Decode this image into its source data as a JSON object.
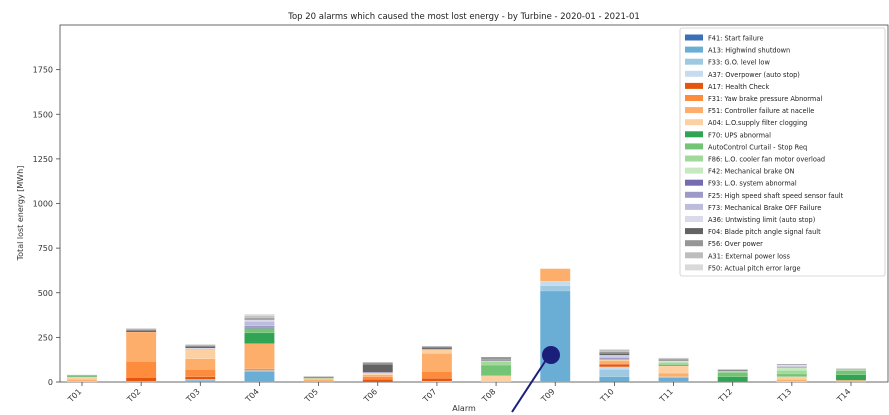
{
  "chart_data": {
    "type": "bar",
    "stacked": true,
    "title": "Top 20 alarms which caused the most lost energy - by Turbine - 2020-01 - 2021-01",
    "xlabel": "Alarm",
    "ylabel": "Total lost energy [MWh]",
    "ylim": [
      0,
      2000
    ],
    "yticks": [
      0,
      250,
      500,
      750,
      1000,
      1250,
      1500,
      1750
    ],
    "grid": false,
    "legend_position": "top-right",
    "categories": [
      "T01",
      "T02",
      "T03",
      "T04",
      "T05",
      "T06",
      "T07",
      "T08",
      "T09",
      "T10",
      "T11",
      "T12",
      "T13",
      "T14"
    ],
    "series": [
      {
        "name": "F41: Start failure",
        "color": "#3b6fb6",
        "values": [
          0,
          0,
          0,
          0,
          0,
          0,
          0,
          0,
          0,
          5,
          0,
          0,
          0,
          0
        ]
      },
      {
        "name": "A13: Highwind shutdown",
        "color": "#6aaed6",
        "values": [
          0,
          5,
          10,
          60,
          0,
          0,
          0,
          0,
          510,
          25,
          25,
          0,
          0,
          0
        ]
      },
      {
        "name": "F33: G.O. level low",
        "color": "#9ecae1",
        "values": [
          5,
          0,
          5,
          5,
          0,
          0,
          5,
          0,
          30,
          40,
          5,
          0,
          5,
          0
        ]
      },
      {
        "name": "A37: Overpower (auto stop)",
        "color": "#c6dbef",
        "values": [
          0,
          0,
          0,
          0,
          0,
          0,
          0,
          0,
          25,
          15,
          0,
          0,
          0,
          0
        ]
      },
      {
        "name": "A17: Health Check",
        "color": "#e6550d",
        "values": [
          0,
          20,
          15,
          0,
          0,
          15,
          15,
          0,
          0,
          15,
          0,
          0,
          0,
          0
        ]
      },
      {
        "name": "F31: Yaw brake pressure Abnormal",
        "color": "#fd8d3c",
        "values": [
          0,
          90,
          40,
          10,
          5,
          15,
          40,
          0,
          0,
          0,
          0,
          0,
          0,
          0
        ]
      },
      {
        "name": "F51: Controller failure at nacelle",
        "color": "#fdae6b",
        "values": [
          10,
          165,
          60,
          140,
          10,
          10,
          100,
          5,
          70,
          20,
          20,
          0,
          10,
          10
        ]
      },
      {
        "name": "A04: L.O.supply filter clogging",
        "color": "#fdd0a2",
        "values": [
          15,
          0,
          50,
          0,
          5,
          10,
          20,
          30,
          0,
          5,
          40,
          0,
          15,
          0
        ]
      },
      {
        "name": "F70: UPS abnormal",
        "color": "#31a354",
        "values": [
          5,
          0,
          0,
          60,
          0,
          0,
          0,
          0,
          0,
          0,
          5,
          30,
          0,
          30
        ]
      },
      {
        "name": "AutoControl Curtail - Stop Req",
        "color": "#74c476",
        "values": [
          5,
          0,
          0,
          25,
          5,
          0,
          5,
          60,
          0,
          0,
          5,
          25,
          15,
          25
        ]
      },
      {
        "name": "F86: L.O. cooler fan motor overload",
        "color": "#a1d99b",
        "values": [
          0,
          0,
          0,
          0,
          0,
          0,
          0,
          20,
          0,
          0,
          10,
          0,
          20,
          0
        ]
      },
      {
        "name": "F42: Mechanical brake ON",
        "color": "#c7e9c0",
        "values": [
          0,
          0,
          0,
          0,
          0,
          0,
          0,
          0,
          0,
          0,
          5,
          5,
          15,
          5
        ]
      },
      {
        "name": "F93: L.O. system abnormal",
        "color": "#756bb1",
        "values": [
          0,
          0,
          0,
          5,
          0,
          0,
          0,
          0,
          0,
          0,
          0,
          0,
          0,
          0
        ]
      },
      {
        "name": "F25: High speed shaft speed sensor fault",
        "color": "#9e9ac8",
        "values": [
          0,
          0,
          0,
          10,
          0,
          5,
          0,
          0,
          0,
          10,
          0,
          0,
          5,
          0
        ]
      },
      {
        "name": "F73: Mechanical Brake OFF Failure",
        "color": "#bcbddc",
        "values": [
          0,
          0,
          5,
          25,
          0,
          0,
          0,
          0,
          0,
          10,
          0,
          0,
          5,
          0
        ]
      },
      {
        "name": "A36: Untwisting limit (auto stop)",
        "color": "#dadaeb",
        "values": [
          0,
          0,
          5,
          10,
          0,
          0,
          0,
          5,
          0,
          5,
          5,
          0,
          5,
          0
        ]
      },
      {
        "name": "F04: Blade pitch angle signal fault",
        "color": "#636363",
        "values": [
          0,
          10,
          10,
          5,
          5,
          45,
          10,
          5,
          0,
          10,
          5,
          5,
          0,
          0
        ]
      },
      {
        "name": "F56: Over power",
        "color": "#969696",
        "values": [
          0,
          5,
          5,
          5,
          0,
          10,
          5,
          15,
          0,
          10,
          5,
          5,
          5,
          5
        ]
      },
      {
        "name": "A31: External power loss",
        "color": "#bdbdbd",
        "values": [
          0,
          5,
          5,
          10,
          0,
          0,
          0,
          0,
          0,
          10,
          5,
          0,
          0,
          0
        ]
      },
      {
        "name": "F50: Actual pitch error large",
        "color": "#d9d9d9",
        "values": [
          0,
          0,
          0,
          10,
          0,
          0,
          0,
          0,
          0,
          5,
          0,
          0,
          0,
          0
        ]
      }
    ]
  }
}
